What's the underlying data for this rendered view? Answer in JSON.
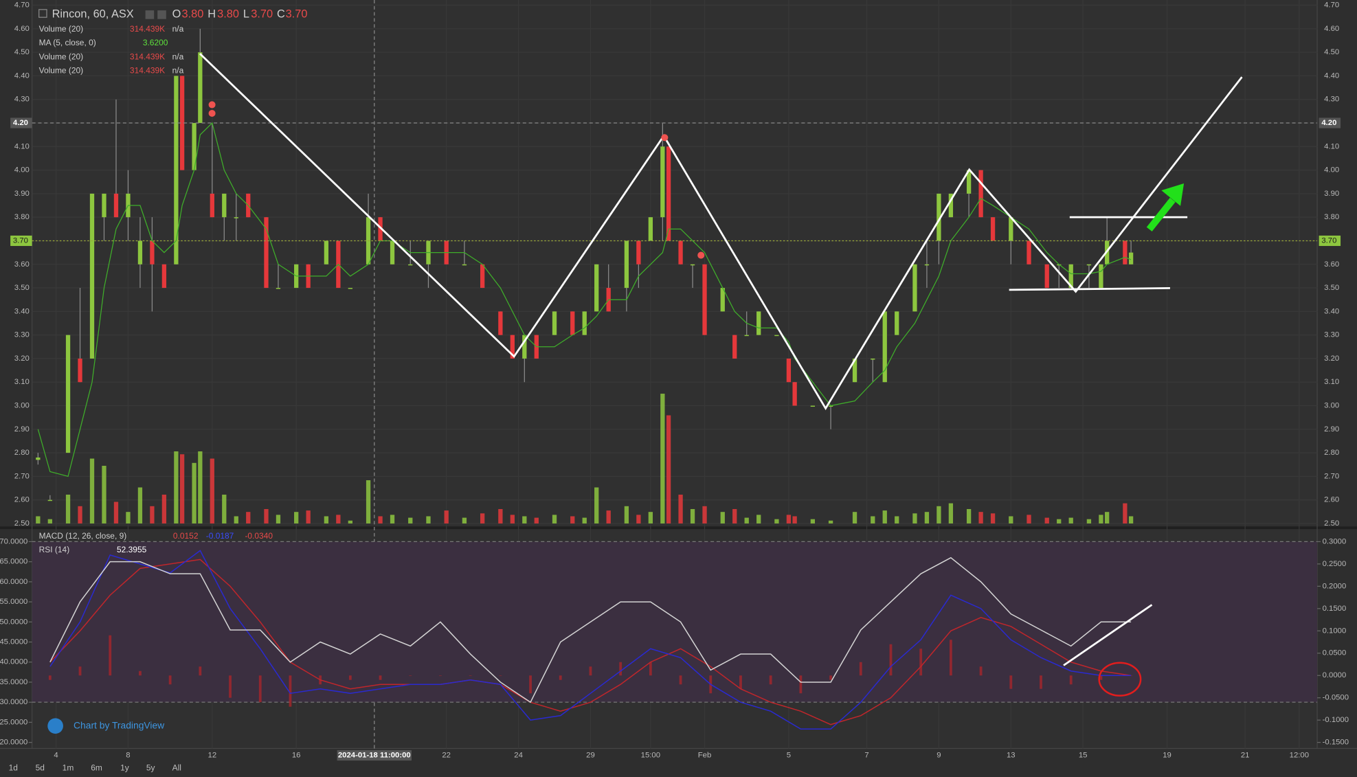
{
  "chart_data": [
    {
      "type": "candlestick",
      "title": "Rincon, 60, ASX",
      "ohlc_legend": [
        {
          "name": "O",
          "value": 3.8,
          "label": "3.80"
        },
        {
          "name": "H",
          "value": 3.8,
          "label": "3.80"
        },
        {
          "name": "L",
          "value": 3.7,
          "label": "3.70"
        },
        {
          "name": "C",
          "value": 3.7,
          "label": "3.70"
        }
      ],
      "indicators": [
        {
          "name": "Volume (20)",
          "value": 314439,
          "label": "314.439K",
          "extra": "n/a"
        },
        {
          "name": "MA (5, close, 0)",
          "value": 3.62,
          "label": "3.6200"
        },
        {
          "name": "Volume (20)",
          "value": 314439,
          "label": "314.439K",
          "extra": "n/a"
        },
        {
          "name": "Volume (20)",
          "value": 314439,
          "label": "314.439K",
          "extra": "n/a"
        }
      ],
      "up_color": "#8dc63f",
      "down_color": "#e5383b",
      "ma_color": "#3fae2a",
      "x": [
        -2,
        0,
        3,
        5,
        7,
        9,
        11,
        13,
        15,
        17,
        19,
        21,
        22,
        24,
        25,
        27,
        29,
        31,
        33,
        36,
        38,
        41,
        43,
        46,
        48,
        50,
        53,
        55,
        57,
        60,
        63,
        66,
        69,
        72,
        75,
        77,
        79,
        81,
        84,
        87,
        89,
        91,
        93,
        96,
        98,
        100,
        102,
        103,
        105,
        107,
        109,
        112,
        114,
        116,
        118,
        121,
        123,
        124,
        127,
        130,
        134,
        137,
        139,
        141,
        144,
        146,
        148,
        150,
        153,
        155,
        157,
        160,
        163,
        166,
        168,
        170,
        173,
        175,
        176,
        179,
        180
      ],
      "open": [
        2.77,
        2.6,
        2.8,
        3.2,
        3.2,
        3.8,
        3.9,
        3.8,
        3.6,
        3.7,
        3.6,
        3.6,
        4.4,
        4.0,
        4.2,
        3.9,
        3.8,
        3.8,
        3.9,
        3.8,
        3.5,
        3.5,
        3.6,
        3.6,
        3.7,
        3.5,
        3.6,
        3.8,
        3.6,
        3.6,
        3.6,
        3.7,
        3.6,
        3.6,
        3.4,
        3.3,
        3.2,
        3.3,
        3.3,
        3.4,
        3.3,
        3.4,
        3.5,
        3.5,
        3.7,
        3.7,
        3.8,
        4.1,
        3.7,
        3.6,
        3.6,
        3.4,
        3.3,
        3.3,
        3.3,
        3.3,
        3.2,
        3.1,
        3.0,
        3.0,
        3.1,
        3.2,
        3.1,
        3.3,
        3.4,
        3.6,
        3.7,
        3.8,
        3.9,
        4.0,
        3.8,
        3.7,
        3.7,
        3.6,
        3.6,
        3.5,
        3.6,
        3.5,
        3.6,
        3.7,
        3.6
      ],
      "high": [
        2.8,
        2.62,
        3.3,
        3.5,
        3.9,
        3.9,
        4.3,
        4.0,
        3.8,
        3.8,
        3.6,
        4.4,
        4.4,
        4.2,
        4.6,
        4.2,
        3.9,
        3.9,
        3.9,
        3.8,
        3.6,
        3.6,
        3.6,
        3.7,
        3.7,
        3.5,
        3.9,
        3.8,
        3.7,
        3.7,
        3.7,
        3.7,
        3.7,
        3.6,
        3.4,
        3.3,
        3.3,
        3.3,
        3.4,
        3.4,
        3.4,
        3.6,
        3.6,
        3.7,
        3.7,
        3.8,
        4.2,
        4.1,
        3.7,
        3.6,
        3.6,
        3.5,
        3.3,
        3.4,
        3.4,
        3.3,
        3.2,
        3.1,
        3.0,
        3.0,
        3.2,
        3.2,
        3.4,
        3.4,
        3.6,
        3.7,
        3.9,
        3.9,
        4.0,
        4.0,
        3.8,
        3.8,
        3.7,
        3.6,
        3.6,
        3.6,
        3.6,
        3.6,
        3.8,
        3.7,
        3.7
      ],
      "low": [
        2.75,
        2.6,
        2.8,
        3.1,
        3.2,
        3.7,
        3.8,
        3.7,
        3.5,
        3.4,
        3.5,
        3.6,
        4.0,
        4.0,
        4.2,
        3.8,
        3.7,
        3.7,
        3.8,
        3.5,
        3.5,
        3.5,
        3.5,
        3.6,
        3.5,
        3.5,
        3.6,
        3.7,
        3.6,
        3.6,
        3.5,
        3.6,
        3.6,
        3.5,
        3.3,
        3.2,
        3.1,
        3.2,
        3.3,
        3.3,
        3.3,
        3.4,
        3.4,
        3.4,
        3.5,
        3.7,
        3.7,
        3.7,
        3.6,
        3.5,
        3.3,
        3.4,
        3.2,
        3.3,
        3.3,
        3.3,
        3.1,
        3.0,
        3.0,
        2.9,
        3.1,
        3.1,
        3.1,
        3.3,
        3.4,
        3.5,
        3.6,
        3.8,
        3.8,
        3.8,
        3.7,
        3.6,
        3.6,
        3.5,
        3.5,
        3.5,
        3.5,
        3.5,
        3.6,
        3.6,
        3.6
      ],
      "close": [
        2.78,
        2.6,
        3.3,
        3.1,
        3.9,
        3.9,
        3.8,
        3.9,
        3.7,
        3.6,
        3.5,
        4.4,
        4.0,
        4.2,
        4.5,
        3.8,
        3.9,
        3.8,
        3.8,
        3.5,
        3.5,
        3.6,
        3.5,
        3.7,
        3.5,
        3.5,
        3.8,
        3.7,
        3.7,
        3.6,
        3.7,
        3.6,
        3.6,
        3.5,
        3.3,
        3.2,
        3.3,
        3.2,
        3.4,
        3.3,
        3.4,
        3.6,
        3.4,
        3.7,
        3.6,
        3.8,
        4.1,
        3.7,
        3.6,
        3.6,
        3.3,
        3.5,
        3.2,
        3.3,
        3.4,
        3.3,
        3.1,
        3.0,
        3.0,
        3.0,
        3.2,
        3.2,
        3.4,
        3.4,
        3.6,
        3.6,
        3.9,
        3.9,
        4.0,
        3.8,
        3.7,
        3.8,
        3.6,
        3.5,
        3.6,
        3.6,
        3.6,
        3.6,
        3.7,
        3.6,
        3.65
      ],
      "volume": [
        5000,
        3000,
        20000,
        12000,
        45000,
        40000,
        15000,
        8000,
        25000,
        12000,
        20000,
        50000,
        48000,
        42000,
        50000,
        45000,
        20000,
        5000,
        8000,
        10000,
        6000,
        8000,
        9000,
        5000,
        6000,
        2000,
        30000,
        5000,
        6000,
        4000,
        5000,
        9000,
        4000,
        7000,
        10000,
        6000,
        5000,
        4000,
        6000,
        5000,
        4000,
        25000,
        9000,
        12000,
        6000,
        8000,
        90000,
        75000,
        20000,
        10000,
        12000,
        8000,
        10000,
        4000,
        6000,
        3000,
        6000,
        5000,
        3000,
        2000,
        8000,
        5000,
        9000,
        5000,
        7000,
        8000,
        12000,
        14000,
        10000,
        8000,
        7000,
        5000,
        6000,
        4000,
        3000,
        4000,
        3000,
        6000,
        8000,
        14000,
        5000
      ],
      "ma": [
        2.9,
        2.72,
        2.7,
        2.9,
        3.1,
        3.5,
        3.75,
        3.85,
        3.85,
        3.7,
        3.65,
        3.7,
        3.85,
        4.0,
        4.15,
        4.2,
        4.0,
        3.9,
        3.85,
        3.75,
        3.6,
        3.55,
        3.55,
        3.55,
        3.6,
        3.55,
        3.6,
        3.7,
        3.7,
        3.65,
        3.65,
        3.65,
        3.65,
        3.6,
        3.5,
        3.4,
        3.3,
        3.25,
        3.25,
        3.3,
        3.33,
        3.38,
        3.45,
        3.45,
        3.55,
        3.6,
        3.65,
        3.75,
        3.75,
        3.7,
        3.65,
        3.5,
        3.4,
        3.35,
        3.33,
        3.33,
        3.27,
        3.2,
        3.1,
        3.0,
        3.02,
        3.1,
        3.15,
        3.25,
        3.35,
        3.45,
        3.55,
        3.7,
        3.8,
        3.88,
        3.85,
        3.8,
        3.75,
        3.65,
        3.6,
        3.56,
        3.56,
        3.57,
        3.6,
        3.63,
        3.62
      ],
      "xlim": [
        -3,
        211
      ],
      "xticks": [
        {
          "value": 1,
          "label": "4"
        },
        {
          "value": 13,
          "label": "8"
        },
        {
          "value": 27,
          "label": "12"
        },
        {
          "value": 41,
          "label": "16"
        },
        {
          "value": 66,
          "label": "22"
        },
        {
          "value": 78,
          "label": "24"
        },
        {
          "value": 90,
          "label": "29"
        },
        {
          "value": 100,
          "label": "15:00"
        },
        {
          "value": 109,
          "label": "Feb"
        },
        {
          "value": 123,
          "label": "5"
        },
        {
          "value": 136,
          "label": "7"
        },
        {
          "value": 148,
          "label": "9"
        },
        {
          "value": 160,
          "label": "13"
        },
        {
          "value": 172,
          "label": "15"
        },
        {
          "value": 186,
          "label": "19"
        },
        {
          "value": 199,
          "label": "21"
        },
        {
          "value": 208,
          "label": "12:00"
        }
      ],
      "ylim": [
        2.5,
        4.7
      ],
      "yticks": [
        {
          "value": 2.5,
          "label": "2.50"
        },
        {
          "value": 2.6,
          "label": "2.60"
        },
        {
          "value": 2.7,
          "label": "2.70"
        },
        {
          "value": 2.8,
          "label": "2.80"
        },
        {
          "value": 2.9,
          "label": "2.90"
        },
        {
          "value": 3.0,
          "label": "3.00"
        },
        {
          "value": 3.1,
          "label": "3.10"
        },
        {
          "value": 3.2,
          "label": "3.20"
        },
        {
          "value": 3.3,
          "label": "3.30"
        },
        {
          "value": 3.4,
          "label": "3.40"
        },
        {
          "value": 3.5,
          "label": "3.50"
        },
        {
          "value": 3.6,
          "label": "3.60"
        },
        {
          "value": 3.7,
          "label": "3.70"
        },
        {
          "value": 3.8,
          "label": "3.80"
        },
        {
          "value": 3.9,
          "label": "3.90"
        },
        {
          "value": 4.0,
          "label": "4.00"
        },
        {
          "value": 4.1,
          "label": "4.10"
        },
        {
          "value": 4.2,
          "label": "4.20"
        },
        {
          "value": 4.3,
          "label": "4.30"
        },
        {
          "value": 4.4,
          "label": "4.40"
        },
        {
          "value": 4.5,
          "label": "4.50"
        },
        {
          "value": 4.6,
          "label": "4.60"
        },
        {
          "value": 4.7,
          "label": "4.70"
        }
      ],
      "price_line": {
        "value": 3.7,
        "label": "3.70"
      },
      "crosshair_y": {
        "value": 4.2,
        "label": "4.20"
      },
      "crosshair_x": {
        "value": 54,
        "label": "2024-01-18 11:00:00"
      }
    },
    {
      "type": "indicator",
      "x": [
        0,
        5,
        10,
        15,
        20,
        25,
        30,
        35,
        40,
        45,
        50,
        55,
        60,
        65,
        70,
        75,
        80,
        85,
        90,
        95,
        100,
        105,
        110,
        115,
        120,
        125,
        130,
        135,
        140,
        145,
        150,
        155,
        160,
        165,
        170,
        175,
        180
      ],
      "xlim": [
        -3,
        211
      ],
      "macd": {
        "name": "MACD (12, 26, close, 9)",
        "readout": [
          0.0152,
          -0.0187,
          {
            "value": -0.034,
            "label": "-0.0340"
          }
        ],
        "macd_color": "#2a2ad0",
        "signal_color": "#c0262b",
        "hist_color": "#a8262b",
        "macd": [
          0.02,
          0.12,
          0.27,
          0.25,
          0.23,
          0.28,
          0.15,
          0.06,
          -0.04,
          -0.03,
          -0.04,
          -0.03,
          -0.02,
          -0.02,
          -0.01,
          -0.02,
          -0.1,
          -0.09,
          -0.04,
          0.01,
          0.06,
          0.04,
          -0.02,
          -0.06,
          -0.08,
          -0.12,
          -0.12,
          -0.06,
          0.02,
          0.08,
          0.18,
          0.15,
          0.08,
          0.04,
          0.01,
          0.0,
          0.0
        ],
        "signal": [
          0.03,
          0.1,
          0.18,
          0.24,
          0.25,
          0.26,
          0.2,
          0.12,
          0.03,
          -0.01,
          -0.03,
          -0.02,
          -0.02,
          -0.02,
          -0.01,
          -0.02,
          -0.06,
          -0.08,
          -0.06,
          -0.02,
          0.03,
          0.06,
          0.02,
          -0.03,
          -0.06,
          -0.08,
          -0.11,
          -0.09,
          -0.05,
          0.02,
          0.1,
          0.13,
          0.11,
          0.07,
          0.03,
          0.01,
          0.0
        ],
        "histogram": [
          -0.01,
          0.02,
          0.09,
          0.01,
          -0.02,
          0.02,
          -0.05,
          -0.06,
          -0.07,
          -0.02,
          -0.01,
          -0.01,
          0,
          0,
          0,
          0,
          -0.04,
          -0.01,
          0.02,
          0.03,
          0.03,
          -0.02,
          -0.04,
          -0.03,
          -0.02,
          -0.04,
          -0.01,
          0.03,
          0.07,
          0.06,
          0.08,
          0.02,
          -0.03,
          -0.03,
          -0.02,
          -0.01,
          0
        ]
      },
      "rsi": {
        "name": "RSI (14)",
        "value": 52.3955,
        "color": "#d4d4d4",
        "values": [
          40,
          55,
          65,
          65,
          62,
          62,
          48,
          48,
          40,
          45,
          42,
          47,
          44,
          50,
          42,
          35,
          30,
          45,
          50,
          55,
          55,
          50,
          38,
          42,
          42,
          35,
          35,
          48,
          55,
          62,
          66,
          60,
          52,
          48,
          44,
          50,
          50
        ]
      },
      "rsi_band": [
        30,
        70
      ],
      "ylim": [
        20,
        70
      ],
      "yticks": [
        {
          "value": 20,
          "label": "20.0000"
        },
        {
          "value": 25,
          "label": "25.0000"
        },
        {
          "value": 30,
          "label": "30.0000"
        },
        {
          "value": 35,
          "label": "35.0000"
        },
        {
          "value": 40,
          "label": "40.0000"
        },
        {
          "value": 45,
          "label": "45.0000"
        },
        {
          "value": 50,
          "label": "50.0000"
        },
        {
          "value": 55,
          "label": "55.0000"
        },
        {
          "value": 60,
          "label": "60.0000"
        },
        {
          "value": 65,
          "label": "65.0000"
        },
        {
          "value": 70,
          "label": "70.0000"
        }
      ],
      "y2lim": [
        -0.15,
        0.3
      ],
      "y2ticks": [
        {
          "value": -0.15,
          "label": "-0.1500"
        },
        {
          "value": -0.1,
          "label": "-0.1000"
        },
        {
          "value": -0.05,
          "label": "-0.0500"
        },
        {
          "value": 0,
          "label": "0.0000"
        },
        {
          "value": 0.05,
          "label": "0.0500"
        },
        {
          "value": 0.1,
          "label": "0.1000"
        },
        {
          "value": 0.15,
          "label": "0.1500"
        },
        {
          "value": 0.2,
          "label": "0.2000"
        },
        {
          "value": 0.25,
          "label": "0.2500"
        },
        {
          "value": 0.3,
          "label": "0.3000"
        }
      ]
    }
  ],
  "watermark": "Chart by TradingView",
  "toolbar": {
    "buttons": [
      "1d",
      "5d",
      "1m",
      "6m",
      "1y",
      "5y",
      "All"
    ]
  }
}
